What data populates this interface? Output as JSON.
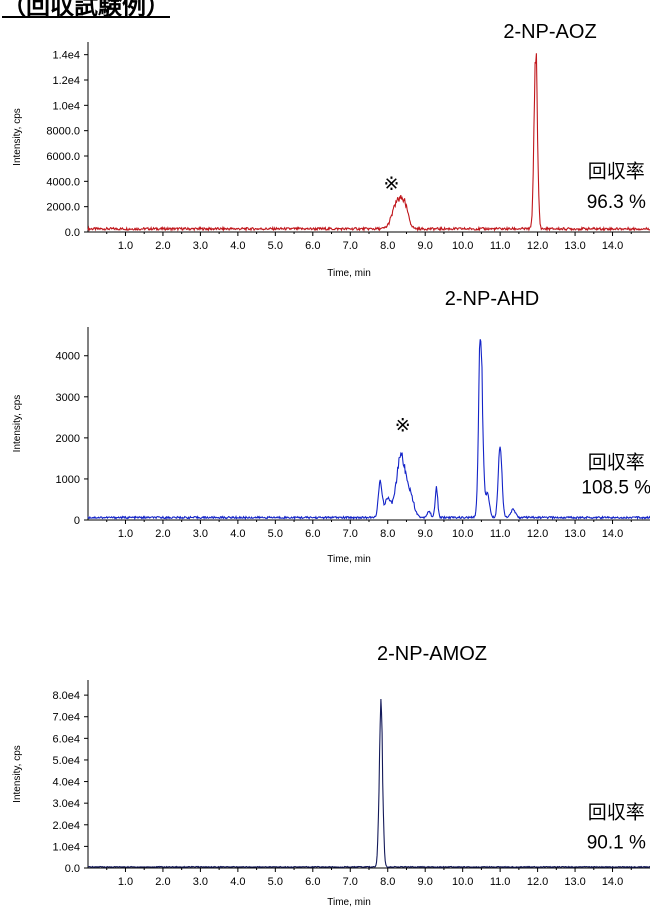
{
  "page_title": "（回収試験例）",
  "chart_data": [
    {
      "type": "line",
      "title": "2-NP-AOZ",
      "xlabel": "Time, min",
      "ylabel": "Intensity, cps",
      "xlim": [
        0,
        15
      ],
      "ylim": [
        0,
        15000
      ],
      "x_ticks": [
        1.0,
        2.0,
        3.0,
        4.0,
        5.0,
        6.0,
        7.0,
        8.0,
        9.0,
        10.0,
        11.0,
        12.0,
        13.0,
        14.0
      ],
      "x_tick_labels": [
        "1.0",
        "2.0",
        "3.0",
        "4.0",
        "5.0",
        "6.0",
        "7.0",
        "8.0",
        "9.0",
        "10.0",
        "11.0",
        "12.0",
        "13.0",
        "14.0"
      ],
      "y_ticks": [
        0,
        2000,
        4000,
        6000,
        8000,
        10000,
        12000,
        14000
      ],
      "y_tick_labels": [
        "0.0",
        "2000.0",
        "4000.0",
        "6000.0",
        "8000.0",
        "1.0e4",
        "1.2e4",
        "1.4e4"
      ],
      "color": "#c0161b",
      "grid": false,
      "baseline": 250,
      "peaks": [
        {
          "time": 8.25,
          "height": 2000,
          "width": 0.13
        },
        {
          "time": 8.45,
          "height": 1600,
          "width": 0.1
        },
        {
          "time": 11.95,
          "height": 13800,
          "width": 0.045
        }
      ],
      "annotations": [
        {
          "text": "※",
          "x": 8.1,
          "y": 3300
        },
        {
          "text": "回収率",
          "x": 14.1,
          "y": 4300
        },
        {
          "text": "96.3 %",
          "x": 14.1,
          "y": 1900
        }
      ]
    },
    {
      "type": "line",
      "title": "2-NP-AHD",
      "xlabel": "Time, min",
      "ylabel": "Intensity, cps",
      "xlim": [
        0,
        15
      ],
      "ylim": [
        0,
        4700
      ],
      "x_ticks": [
        1.0,
        2.0,
        3.0,
        4.0,
        5.0,
        6.0,
        7.0,
        8.0,
        9.0,
        10.0,
        11.0,
        12.0,
        13.0,
        14.0
      ],
      "x_tick_labels": [
        "1.0",
        "2.0",
        "3.0",
        "4.0",
        "5.0",
        "6.0",
        "7.0",
        "8.0",
        "9.0",
        "10.0",
        "11.0",
        "12.0",
        "13.0",
        "14.0"
      ],
      "y_ticks": [
        0,
        1000,
        2000,
        3000,
        4000
      ],
      "y_tick_labels": [
        "0",
        "1000",
        "2000",
        "3000",
        "4000"
      ],
      "color": "#1424c8",
      "grid": false,
      "baseline": 60,
      "peaks": [
        {
          "time": 7.8,
          "height": 850,
          "width": 0.05
        },
        {
          "time": 8.0,
          "height": 450,
          "width": 0.08
        },
        {
          "time": 8.35,
          "height": 1500,
          "width": 0.12
        },
        {
          "time": 8.6,
          "height": 500,
          "width": 0.1
        },
        {
          "time": 9.1,
          "height": 150,
          "width": 0.05
        },
        {
          "time": 9.3,
          "height": 700,
          "width": 0.035
        },
        {
          "time": 10.48,
          "height": 4600,
          "width": 0.05
        },
        {
          "time": 10.65,
          "height": 600,
          "width": 0.06
        },
        {
          "time": 11.0,
          "height": 1700,
          "width": 0.05
        },
        {
          "time": 11.35,
          "height": 200,
          "width": 0.06
        }
      ],
      "annotations": [
        {
          "text": "※",
          "x": 8.4,
          "y": 2150
        },
        {
          "text": "回収率",
          "x": 14.1,
          "y": 1250
        },
        {
          "text": "108.5 %",
          "x": 14.1,
          "y": 650
        }
      ]
    },
    {
      "type": "line",
      "title": "2-NP-AMOZ",
      "xlabel": "Time, min",
      "ylabel": "Intensity, cps",
      "xlim": [
        0,
        15
      ],
      "ylim": [
        0,
        87000
      ],
      "x_ticks": [
        1.0,
        2.0,
        3.0,
        4.0,
        5.0,
        6.0,
        7.0,
        8.0,
        9.0,
        10.0,
        11.0,
        12.0,
        13.0,
        14.0
      ],
      "x_tick_labels": [
        "1.0",
        "2.0",
        "3.0",
        "4.0",
        "5.0",
        "6.0",
        "7.0",
        "8.0",
        "9.0",
        "10.0",
        "11.0",
        "12.0",
        "13.0",
        "14.0"
      ],
      "y_ticks": [
        0,
        10000,
        20000,
        30000,
        40000,
        50000,
        60000,
        70000,
        80000
      ],
      "y_tick_labels": [
        "0.0",
        "1.0e4",
        "2.0e4",
        "3.0e4",
        "4.0e4",
        "5.0e4",
        "6.0e4",
        "7.0e4",
        "8.0e4"
      ],
      "color": "#141a5a",
      "grid": false,
      "baseline": 500,
      "peaks": [
        {
          "time": 7.82,
          "height": 72000,
          "width": 0.045
        }
      ],
      "annotations": [
        {
          "text": "回収率",
          "x": 14.1,
          "y": 23000
        },
        {
          "text": "90.1 %",
          "x": 14.1,
          "y": 9000
        }
      ]
    }
  ]
}
